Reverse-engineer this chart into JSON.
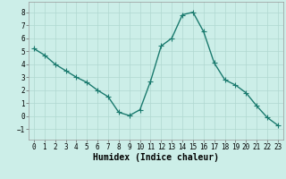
{
  "x": [
    0,
    1,
    2,
    3,
    4,
    5,
    6,
    7,
    8,
    9,
    10,
    11,
    12,
    13,
    14,
    15,
    16,
    17,
    18,
    19,
    20,
    21,
    22,
    23
  ],
  "y": [
    5.2,
    4.7,
    4.0,
    3.5,
    3.0,
    2.6,
    2.0,
    1.5,
    0.3,
    0.05,
    0.5,
    2.7,
    5.4,
    6.0,
    7.8,
    8.0,
    6.5,
    4.1,
    2.8,
    2.4,
    1.8,
    0.8,
    -0.1,
    -0.7
  ],
  "line_color": "#1a7a6e",
  "marker": "+",
  "marker_size": 4,
  "bg_color": "#cceee8",
  "grid_color": "#b0d8d0",
  "xlabel": "Humidex (Indice chaleur)",
  "xlabel_fontsize": 7,
  "xlim": [
    -0.5,
    23.5
  ],
  "ylim": [
    -1.8,
    8.8
  ],
  "yticks": [
    -1,
    0,
    1,
    2,
    3,
    4,
    5,
    6,
    7,
    8
  ],
  "xticks": [
    0,
    1,
    2,
    3,
    4,
    5,
    6,
    7,
    8,
    9,
    10,
    11,
    12,
    13,
    14,
    15,
    16,
    17,
    18,
    19,
    20,
    21,
    22,
    23
  ],
  "tick_fontsize": 5.5,
  "linewidth": 1.0,
  "markeredgewidth": 0.8
}
